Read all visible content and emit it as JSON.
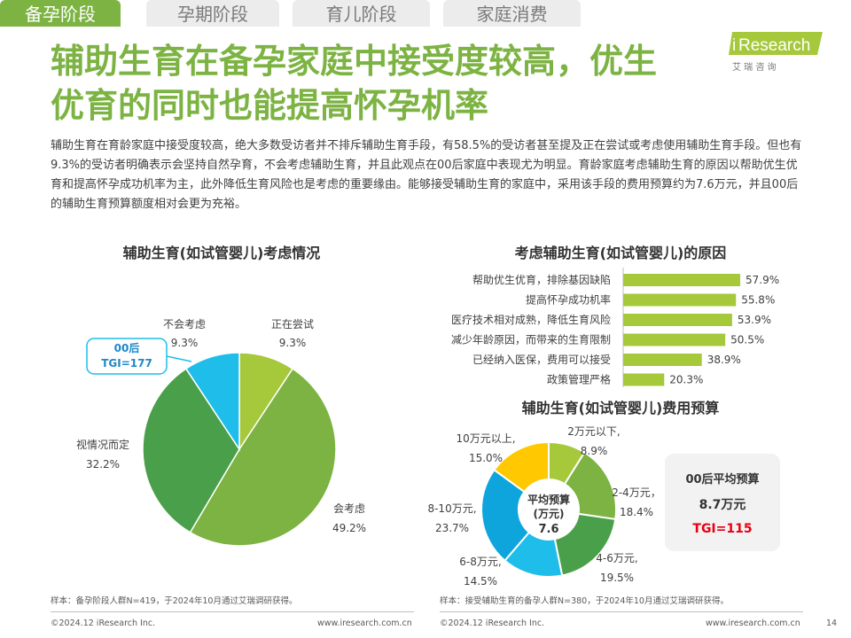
{
  "tabs": [
    {
      "label": "备孕阶段",
      "active": true
    },
    {
      "label": "孕期阶段",
      "active": false
    },
    {
      "label": "育儿阶段",
      "active": false
    },
    {
      "label": "家庭消费",
      "active": false
    }
  ],
  "logo": {
    "text_i": "i",
    "text": "Research",
    "sub": "艾 瑞 咨 询"
  },
  "title": {
    "line1": "辅助生育在备孕家庭中接受度较高，优生",
    "line2": "优育的同时也能提高怀孕机率"
  },
  "body_text": "辅助生育在育龄家庭中接受度较高，绝大多数受访者并不排斥辅助生育手段，有58.5%的受访者甚至提及正在尝试或考虑使用辅助生育手段。但也有9.3%的受访者明确表示会坚持自然孕育，不会考虑辅助生育，并且此观点在00后家庭中表现尤为明显。育龄家庭考虑辅助生育的原因以帮助优生优育和提高怀孕成功机率为主，此外降低生育风险也是考虑的重要缘由。能够接受辅助生育的家庭中，采用该手段的费用预算约为7.6万元，并且00后的辅助生育预算额度相对会更为充裕。",
  "colors": {
    "green_light": "#a6c83b",
    "green_mid": "#7cb342",
    "green_dark": "#4aa04a",
    "cyan": "#1ebdea",
    "blue": "#0ea5dc",
    "yellow": "#ffc800",
    "red": "#e60012"
  },
  "chart_data": [
    {
      "type": "pie",
      "title": "辅助生育(如试管婴儿)考虑情况",
      "slices": [
        {
          "label": "正在尝试",
          "value": 9.3,
          "text": "9.3%"
        },
        {
          "label": "会考虑",
          "value": 49.2,
          "text": "49.2%"
        },
        {
          "label": "视情况而定",
          "value": 32.2,
          "text": "32.2%"
        },
        {
          "label": "不会考虑",
          "value": 9.3,
          "text": "9.3%"
        }
      ],
      "callout": {
        "line1": "00后",
        "line2": "TGI=177"
      },
      "note": "样本：备孕阶段人群N=419，于2024年10月通过艾瑞调研获得。"
    },
    {
      "type": "bar",
      "orientation": "horizontal",
      "title": "考虑辅助生育(如试管婴儿)的原因",
      "categories": [
        "帮助优生优育，排除基因缺陷",
        "提高怀孕成功机率",
        "医疗技术相对成熟，降低生育风险",
        "减少年龄原因，而带来的生育限制",
        "已经纳入医保，费用可以接受",
        "政策管理严格"
      ],
      "values": [
        57.9,
        55.8,
        53.9,
        50.5,
        38.9,
        20.3
      ],
      "value_labels": [
        "57.9%",
        "55.8%",
        "53.9%",
        "50.5%",
        "38.9%",
        "20.3%"
      ]
    },
    {
      "type": "pie",
      "variant": "donut",
      "title": "辅助生育(如试管婴儿)费用预算",
      "center": {
        "line1": "平均预算",
        "line2": "(万元)",
        "line3": "7.6"
      },
      "slices": [
        {
          "label": "2万元以下,",
          "value": 8.9,
          "text": "8.9%"
        },
        {
          "label": "2-4万元，",
          "value": 18.4,
          "text": "18.4%"
        },
        {
          "label": "4-6万元,",
          "value": 19.5,
          "text": "19.5%"
        },
        {
          "label": "6-8万元,",
          "value": 14.5,
          "text": "14.5%"
        },
        {
          "label": "8-10万元,",
          "value": 23.7,
          "text": "23.7%"
        },
        {
          "label": "10万元以上,",
          "value": 15.0,
          "text": "15.0%"
        }
      ],
      "box": {
        "line1": "00后平均预算",
        "line2": "8.7万元",
        "line3": "TGI=115"
      },
      "note": "样本：接受辅助生育的备孕人群N=380，于2024年10月通过艾瑞调研获得。"
    }
  ],
  "footer": {
    "left_copyright": "©2024.12 iResearch Inc.",
    "left_url": "www.iresearch.com.cn",
    "right_copyright": "©2024.12 iResearch Inc.",
    "right_url": "www.iresearch.com.cn",
    "page": "14"
  }
}
